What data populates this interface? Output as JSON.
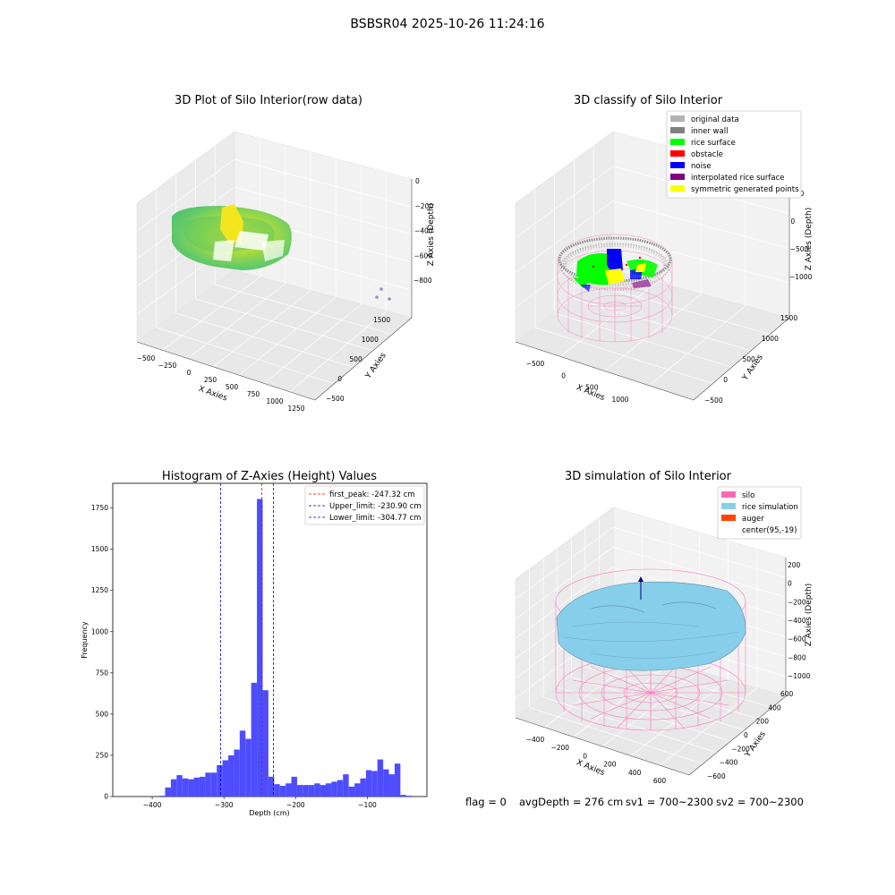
{
  "figure": {
    "suptitle": "BSBSR04 2025-10-26 11:24:16",
    "status_line": {
      "flag": "flag = 0",
      "avg_depth": "avgDepth = 276 cm",
      "sv1": "sv1 = 700~2300",
      "sv2": "sv2 = 700~2300"
    }
  },
  "chart_data": [
    {
      "type": "scatter",
      "projection": "3d",
      "title": "3D Plot of Silo Interior(row data)",
      "xlabel": "X Axies",
      "ylabel": "Y Axies",
      "zlabel": "Z Axies (Depth)",
      "x_ticks": [
        "−500",
        "−250",
        "0",
        "250",
        "500",
        "750",
        "1000",
        "1250"
      ],
      "y_ticks": [
        "−500",
        "0",
        "500",
        "1000",
        "1500"
      ],
      "z_ticks": [
        "−800",
        "−600",
        "−400",
        "−200",
        "0"
      ],
      "colormap": [
        "#3aba6a",
        "#73cf4e",
        "#b3dd2b",
        "#f3e51e"
      ]
    },
    {
      "type": "scatter",
      "projection": "3d",
      "title": "3D classify of Silo Interior",
      "zlabel": "Z Axies (Depth)",
      "xlabel": "X Axies",
      "ylabel": "Y Axies",
      "x_ticks": [
        "−500",
        "0",
        "500",
        "1000"
      ],
      "y_ticks": [
        "−500",
        "0",
        "500",
        "1000",
        "1500"
      ],
      "z_ticks": [
        "−1000",
        "−500",
        "0",
        "500"
      ],
      "legend_position": "upper right",
      "legend": [
        {
          "label": "original data",
          "color": "#b3b3b3"
        },
        {
          "label": "inner wall",
          "color": "#808080"
        },
        {
          "label": "rice surface",
          "color": "#00ff00"
        },
        {
          "label": "obstacle",
          "color": "#ff0000"
        },
        {
          "label": "noise",
          "color": "#0000ff"
        },
        {
          "label": "interpolated rice surface",
          "color": "#800080"
        },
        {
          "label": "symmetric generated points",
          "color": "#ffff00"
        }
      ]
    },
    {
      "type": "bar",
      "title": "Histogram of Z-Axies (Height) Values",
      "xlabel": "Depth (cm)",
      "ylabel": "Frequency",
      "xlim": [
        -455,
        -17
      ],
      "ylim": [
        0,
        1900
      ],
      "x_ticks": [
        -400,
        -300,
        -200,
        -100
      ],
      "x_tick_labels": [
        "−400",
        "−300",
        "−200",
        "−100"
      ],
      "y_ticks": [
        0,
        250,
        500,
        750,
        1000,
        1250,
        1500,
        1750
      ],
      "y_tick_labels": [
        "0",
        "250",
        "500",
        "750",
        "1000",
        "1250",
        "1500",
        "1750"
      ],
      "bar_color": "#4d4dff",
      "bin_edges": [
        -390,
        -382,
        -374,
        -366,
        -358,
        -350,
        -342,
        -334,
        -326,
        -318,
        -310,
        -302,
        -294,
        -286,
        -278,
        -270,
        -262,
        -254,
        -246,
        -238,
        -230,
        -222,
        -214,
        -206,
        -198,
        -190,
        -182,
        -174,
        -166,
        -158,
        -150,
        -142,
        -134,
        -126,
        -118,
        -110,
        -102,
        -94,
        -86,
        -78,
        -70,
        -62,
        -54,
        -46,
        -38,
        -30
      ],
      "counts": [
        5,
        55,
        105,
        130,
        110,
        105,
        115,
        120,
        145,
        145,
        190,
        220,
        250,
        285,
        400,
        350,
        690,
        1805,
        645,
        120,
        75,
        65,
        80,
        120,
        70,
        70,
        70,
        80,
        70,
        80,
        90,
        100,
        135,
        60,
        80,
        110,
        160,
        155,
        225,
        165,
        135,
        200,
        10,
        5,
        0
      ],
      "legend_position": "upper right",
      "reference_lines": [
        {
          "label": "first_peak: -247.32 cm",
          "x": -247.32,
          "color": "#ff0000"
        },
        {
          "label": "Upper_limit: -230.90 cm",
          "x": -230.9,
          "color": "#0000cc"
        },
        {
          "label": "Lower_limit: -304.77 cm",
          "x": -304.77,
          "color": "#0000cc"
        }
      ]
    },
    {
      "type": "surface",
      "projection": "3d",
      "title": "3D simulation of Silo Interior",
      "xlabel": "X Axies",
      "ylabel": "Y Axies",
      "zlabel": "Z Axies (Depth)",
      "x_ticks": [
        "−400",
        "−200",
        "0",
        "200",
        "400",
        "600"
      ],
      "y_ticks": [
        "−600",
        "−400",
        "−200",
        "0",
        "200",
        "400",
        "600"
      ],
      "z_ticks": [
        "−1000",
        "−800",
        "−600",
        "−400",
        "−200",
        "0",
        "200"
      ],
      "legend_position": "upper right",
      "legend": [
        {
          "label": "silo",
          "color": "#ff69b4"
        },
        {
          "label": "rice simulation",
          "color": "#87ceeb"
        },
        {
          "label": "auger",
          "color": "#ff4500"
        },
        {
          "label": "center(95,-19)",
          "color": ""
        }
      ]
    }
  ]
}
